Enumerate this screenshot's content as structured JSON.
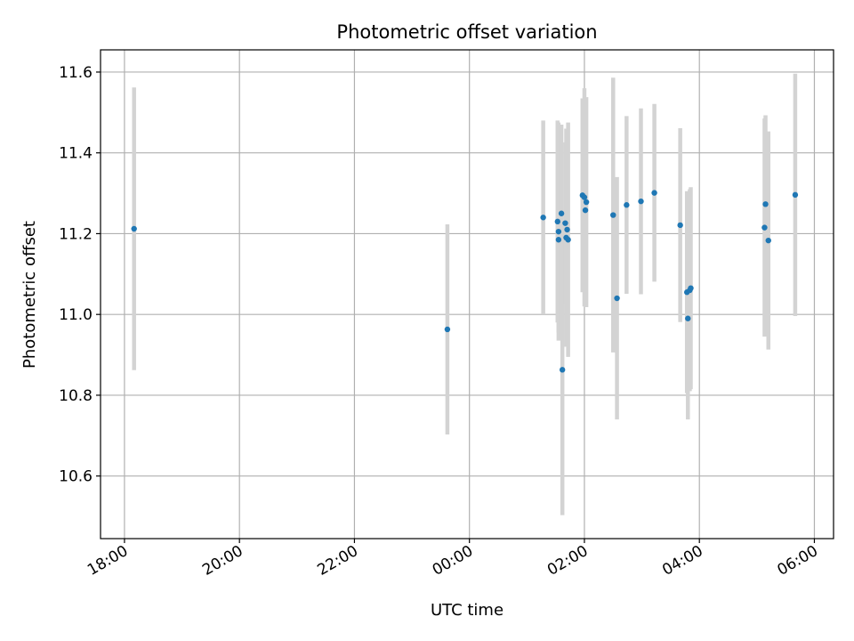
{
  "chart_data": {
    "type": "scatter",
    "title": "Photometric offset variation",
    "xlabel": "UTC time",
    "ylabel": "Photometric offset",
    "x_axis_type": "time",
    "xlim": [
      "17:35",
      "06:20"
    ],
    "ylim": [
      10.445,
      11.655
    ],
    "x_ticks": [
      "18:00",
      "20:00",
      "22:00",
      "00:00",
      "02:00",
      "04:00",
      "06:00"
    ],
    "y_ticks": [
      10.6,
      10.8,
      11.0,
      11.2,
      11.4,
      11.6
    ],
    "y_tick_labels": [
      "10.6",
      "10.8",
      "11.0",
      "11.2",
      "11.4",
      "11.6"
    ],
    "grid": true,
    "colors": {
      "point": "#1f77b4",
      "errorbar": "#d3d3d3"
    },
    "series": [
      {
        "points": [
          {
            "x": "18:10",
            "y": 11.212,
            "yerr": 0.35
          },
          {
            "x": "23:37",
            "y": 10.963,
            "yerr": 0.26
          },
          {
            "x": "01:17",
            "y": 11.24,
            "yerr": 0.24
          },
          {
            "x": "01:32",
            "y": 11.23,
            "yerr": 0.25
          },
          {
            "x": "01:33",
            "y": 11.205,
            "yerr": 0.27
          },
          {
            "x": "01:33",
            "y": 11.185,
            "yerr": 0.23
          },
          {
            "x": "01:36",
            "y": 11.25,
            "yerr": 0.22
          },
          {
            "x": "01:37",
            "y": 10.863,
            "yerr": 0.36
          },
          {
            "x": "01:40",
            "y": 11.226,
            "yerr": 0.2
          },
          {
            "x": "01:41",
            "y": 11.19,
            "yerr": 0.27
          },
          {
            "x": "01:42",
            "y": 11.21,
            "yerr": 0.2
          },
          {
            "x": "01:43",
            "y": 11.185,
            "yerr": 0.29
          },
          {
            "x": "01:58",
            "y": 11.295,
            "yerr": 0.24
          },
          {
            "x": "02:00",
            "y": 11.29,
            "yerr": 0.27
          },
          {
            "x": "02:02",
            "y": 11.278,
            "yerr": 0.26
          },
          {
            "x": "02:01",
            "y": 11.258,
            "yerr": 0.24
          },
          {
            "x": "02:30",
            "y": 11.246,
            "yerr": 0.34
          },
          {
            "x": "02:34",
            "y": 11.04,
            "yerr": 0.3
          },
          {
            "x": "02:44",
            "y": 11.271,
            "yerr": 0.22
          },
          {
            "x": "02:59",
            "y": 11.28,
            "yerr": 0.23
          },
          {
            "x": "03:13",
            "y": 11.301,
            "yerr": 0.22
          },
          {
            "x": "03:40",
            "y": 11.221,
            "yerr": 0.24
          },
          {
            "x": "03:47",
            "y": 11.055,
            "yerr": 0.25
          },
          {
            "x": "03:48",
            "y": 10.99,
            "yerr": 0.25
          },
          {
            "x": "03:50",
            "y": 11.06,
            "yerr": 0.25
          },
          {
            "x": "03:51",
            "y": 11.065,
            "yerr": 0.25
          },
          {
            "x": "05:08",
            "y": 11.215,
            "yerr": 0.27
          },
          {
            "x": "05:09",
            "y": 11.273,
            "yerr": 0.22
          },
          {
            "x": "05:12",
            "y": 11.183,
            "yerr": 0.27
          },
          {
            "x": "05:40",
            "y": 11.296,
            "yerr": 0.3
          }
        ]
      }
    ]
  }
}
